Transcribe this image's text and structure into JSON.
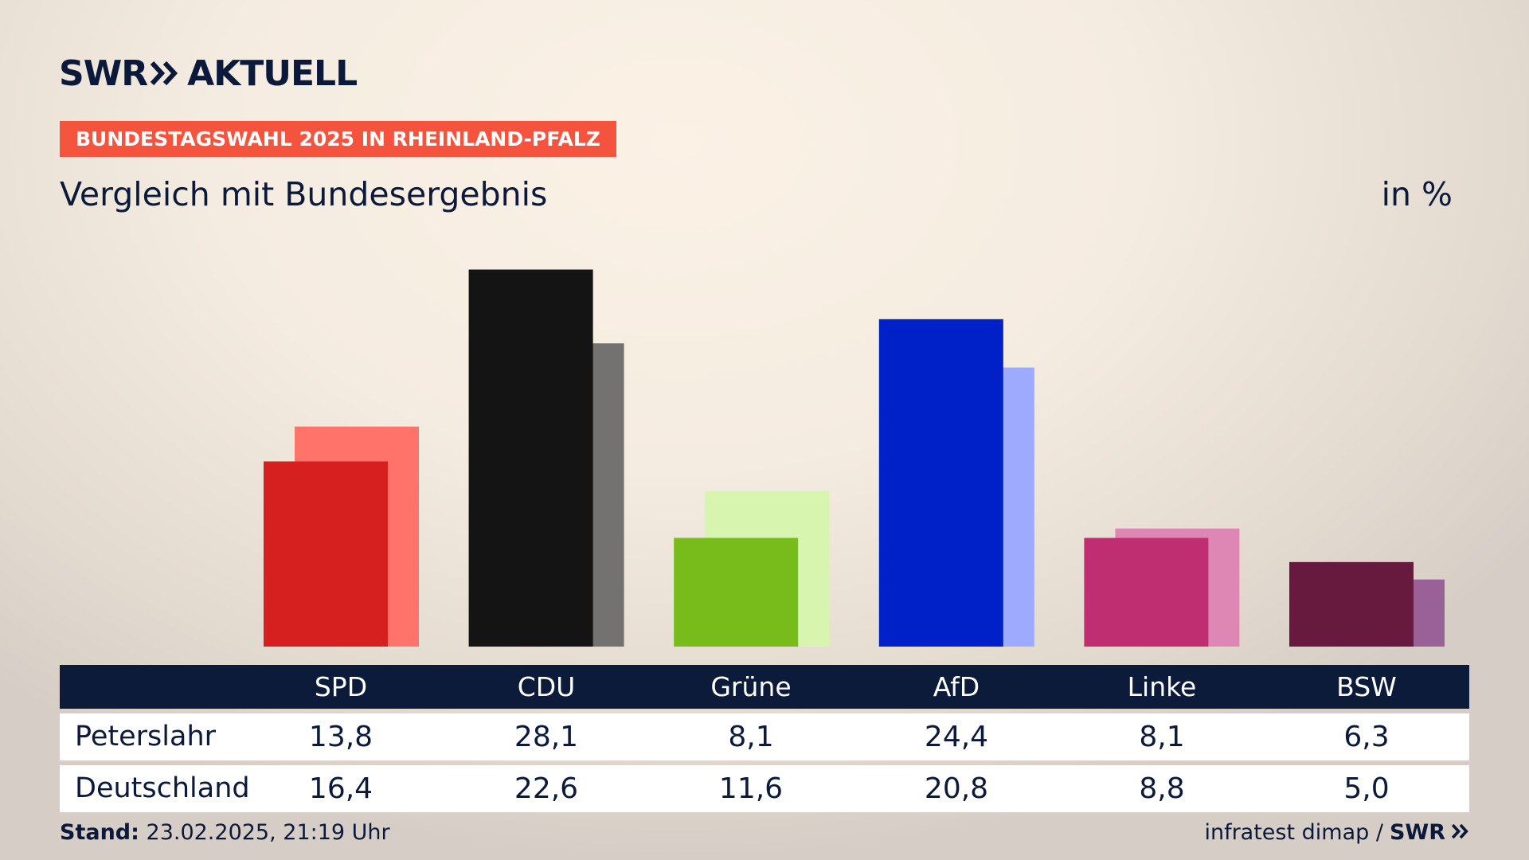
{
  "header": {
    "logo_text": "SWR",
    "logo_suffix": "AKTUELL",
    "badge": "BUNDESTAGSWAHL 2025 IN RHEINLAND-PFALZ",
    "subtitle": "Vergleich mit Bundesergebnis",
    "unit": "in %"
  },
  "chart_data": {
    "type": "bar",
    "categories": [
      "SPD",
      "CDU",
      "Grüne",
      "AfD",
      "Linke",
      "BSW"
    ],
    "series": [
      {
        "name": "Peterslahr",
        "values": [
          13.8,
          28.1,
          8.1,
          24.4,
          8.1,
          6.3
        ]
      },
      {
        "name": "Deutschland",
        "values": [
          16.4,
          22.6,
          11.6,
          20.8,
          8.8,
          5.0
        ]
      }
    ],
    "ylim": [
      0,
      30
    ],
    "colors": {
      "primary": [
        "#d62020",
        "#141414",
        "#78bc1c",
        "#0020c8",
        "#be2e70",
        "#681a3e"
      ],
      "secondary": [
        "#ff736a",
        "#737271",
        "#d8f5b0",
        "#9daafd",
        "#de87b5",
        "#996197"
      ]
    }
  },
  "table": {
    "headers": [
      "SPD",
      "CDU",
      "Grüne",
      "AfD",
      "Linke",
      "BSW"
    ],
    "rows": [
      {
        "label": "Peterslahr",
        "values": [
          "13,8",
          "28,1",
          "8,1",
          "24,4",
          "8,1",
          "6,3"
        ]
      },
      {
        "label": "Deutschland",
        "values": [
          "16,4",
          "22,6",
          "11,6",
          "20,8",
          "8,8",
          "5,0"
        ]
      }
    ]
  },
  "footer": {
    "stand_label": "Stand:",
    "stand_value": "23.02.2025, 21:19 Uhr",
    "source": "infratest dimap /",
    "source_brand": "SWR"
  }
}
